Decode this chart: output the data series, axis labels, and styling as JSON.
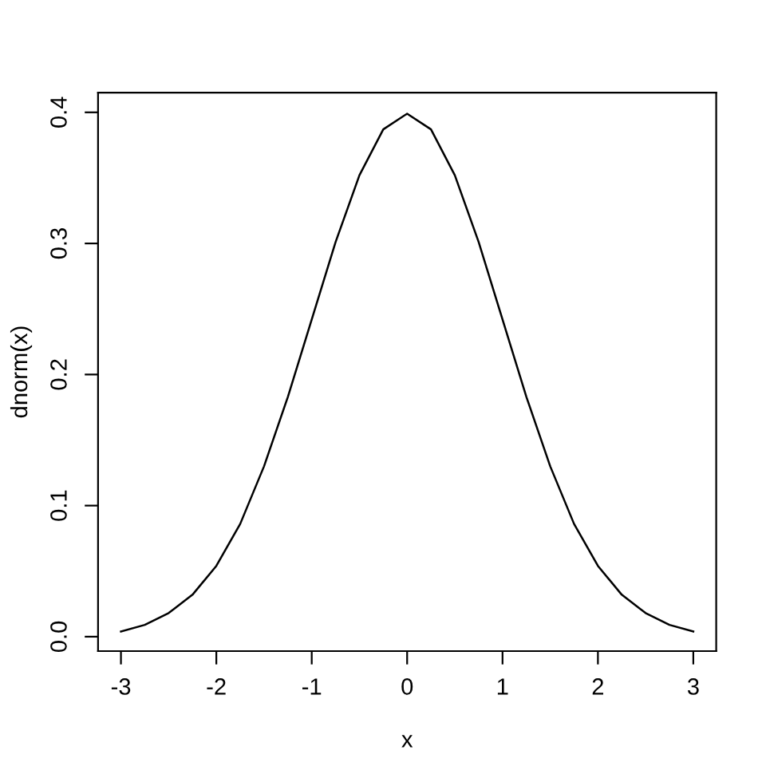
{
  "chart_data": {
    "type": "line",
    "xlabel": "x",
    "ylabel": "dnorm(x)",
    "x": [
      -3,
      -2.75,
      -2.5,
      -2.25,
      -2,
      -1.75,
      -1.5,
      -1.25,
      -1,
      -0.75,
      -0.5,
      -0.25,
      0,
      0.25,
      0.5,
      0.75,
      1,
      1.25,
      1.5,
      1.75,
      2,
      2.25,
      2.5,
      2.75,
      3
    ],
    "series": [
      {
        "color": "#000000",
        "values": [
          0.004,
          0.009,
          0.018,
          0.032,
          0.054,
          0.086,
          0.13,
          0.183,
          0.242,
          0.301,
          0.352,
          0.387,
          0.399,
          0.387,
          0.352,
          0.301,
          0.242,
          0.183,
          0.13,
          0.086,
          0.054,
          0.032,
          0.018,
          0.009,
          0.004
        ]
      }
    ],
    "xlim": [
      -3.24,
      3.24
    ],
    "ylim": [
      -0.011,
      0.415
    ],
    "xticks": [
      -3,
      -2,
      -1,
      0,
      1,
      2,
      3
    ],
    "yticks": [
      {
        "value": 0,
        "label": "0.0"
      },
      0.1,
      0.2,
      0.3,
      0.4
    ],
    "grid": false,
    "legend": false,
    "marker": "none",
    "line_style": "solid"
  }
}
